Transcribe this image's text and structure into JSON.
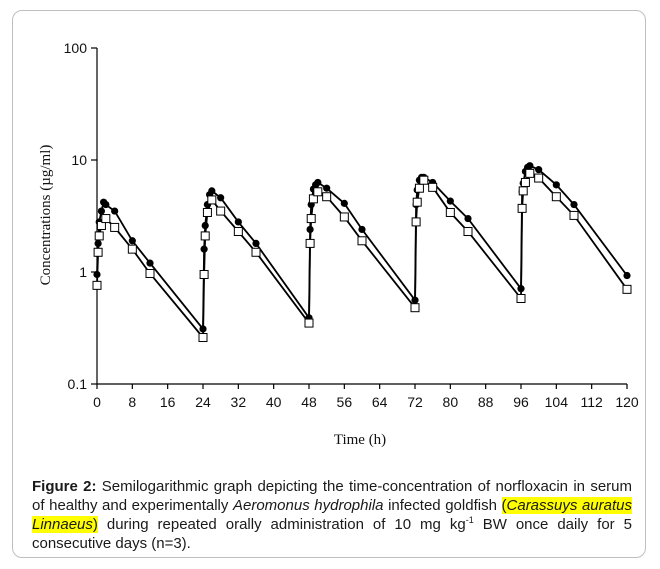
{
  "chart_data": {
    "type": "line",
    "xlabel": "Time (h)",
    "ylabel": "Concentrations (µg/ml)",
    "xlim": [
      0,
      120
    ],
    "ylim": [
      0.1,
      100
    ],
    "y_scale": "log",
    "x_ticks": [
      0,
      8,
      16,
      24,
      32,
      40,
      48,
      56,
      64,
      72,
      80,
      88,
      96,
      104,
      112,
      120
    ],
    "y_ticks": [
      0.1,
      1,
      10,
      100
    ],
    "y_tick_labels": [
      "0.1",
      "1",
      "10",
      "100"
    ],
    "grid": false,
    "legend": "none",
    "series": [
      {
        "marker": "filled-circle",
        "color": "#000000",
        "x": [
          0,
          0.25,
          0.5,
          1,
          1.5,
          2,
          4,
          8,
          12,
          24,
          24.25,
          24.5,
          25,
          25.5,
          26,
          28,
          32,
          36,
          48,
          48.25,
          48.5,
          49,
          49.5,
          50,
          52,
          56,
          60,
          72,
          72.25,
          72.5,
          73,
          73.5,
          74,
          76,
          80,
          84,
          96,
          96.25,
          96.5,
          97,
          97.5,
          98,
          100,
          104,
          108,
          120
        ],
        "y": [
          0.95,
          1.8,
          2.8,
          3.5,
          4.2,
          4.0,
          3.5,
          1.9,
          1.2,
          0.31,
          1.6,
          2.6,
          4.0,
          4.9,
          5.3,
          4.6,
          2.8,
          1.8,
          0.39,
          2.4,
          4.0,
          5.5,
          6.0,
          6.3,
          5.6,
          4.1,
          2.4,
          0.56,
          4.0,
          5.4,
          6.6,
          7.0,
          7.0,
          6.3,
          4.3,
          3.0,
          0.71,
          5.2,
          6.2,
          7.9,
          8.6,
          8.9,
          8.2,
          6.0,
          4.0,
          0.93
        ]
      },
      {
        "marker": "open-square",
        "color": "#000000",
        "x": [
          0,
          0.25,
          0.5,
          1,
          2,
          4,
          8,
          12,
          24,
          24.25,
          24.5,
          25,
          26,
          28,
          32,
          36,
          48,
          48.25,
          48.5,
          49,
          50,
          52,
          56,
          60,
          72,
          72.25,
          72.5,
          73,
          74,
          76,
          80,
          84,
          96,
          96.25,
          96.5,
          97,
          98,
          100,
          104,
          108,
          120
        ],
        "y": [
          0.76,
          1.5,
          2.1,
          2.6,
          3.0,
          2.5,
          1.6,
          0.97,
          0.26,
          0.95,
          2.1,
          3.4,
          4.4,
          3.5,
          2.3,
          1.5,
          0.35,
          1.8,
          3.0,
          4.5,
          5.2,
          4.7,
          3.1,
          1.9,
          0.48,
          2.8,
          4.2,
          5.6,
          6.6,
          5.7,
          3.4,
          2.3,
          0.58,
          3.7,
          5.3,
          6.3,
          7.6,
          6.9,
          4.7,
          3.2,
          0.7
        ]
      }
    ]
  },
  "caption": {
    "label": "Figure 2:",
    "text_1": " Semilogarithmic graph depicting the time-concentration of norfloxacin in serum of healthy and experimentally ",
    "italic_1": "Aeromonus hydrophila",
    "text_2": " infected goldfish ",
    "highlight_open": "(",
    "highlight_italic": "Carassuys auratus Linnaeus",
    "highlight_close": ")",
    "text_3": " during repeated orally administration of 10 mg kg",
    "superscript": "-1",
    "text_4": " BW once daily for 5 consecutive days (n=3)."
  }
}
